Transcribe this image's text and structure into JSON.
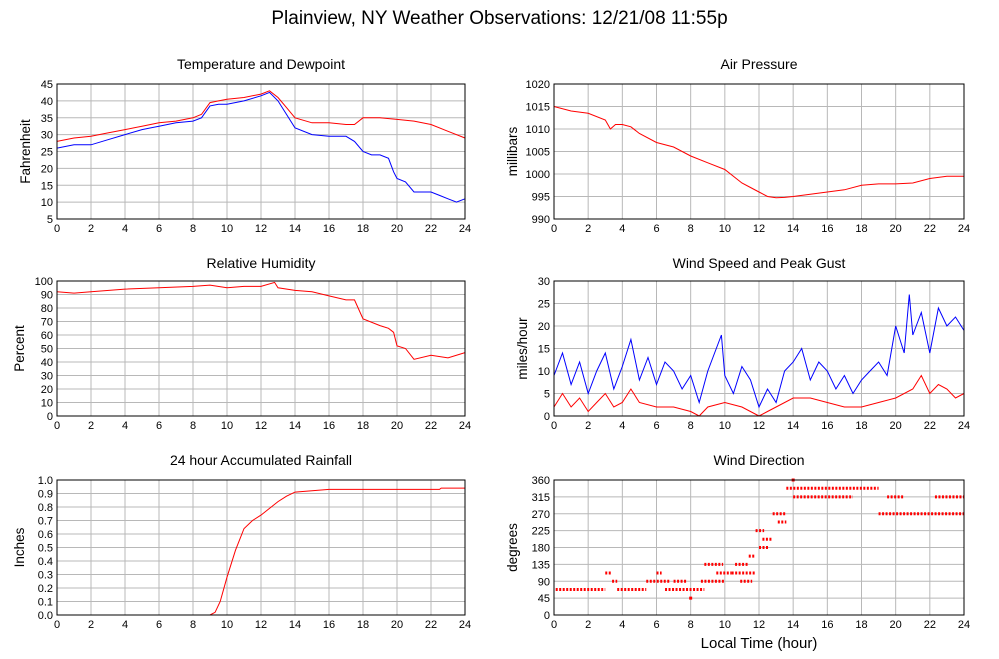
{
  "title": "Plainview, NY Weather Observations: 12/21/08 11:55p",
  "x_axis_label": "Local Time (hour)",
  "colors": {
    "red": "#ff0000",
    "blue": "#0000ff",
    "grid": "#b8b8b8"
  },
  "chart_data": [
    {
      "id": "temp",
      "type": "line",
      "title": "Temperature and Dewpoint",
      "ylabel": "Fahrenheit",
      "xlim": [
        0,
        24
      ],
      "ylim": [
        5,
        45
      ],
      "xticks": [
        0,
        2,
        4,
        6,
        8,
        10,
        12,
        14,
        16,
        18,
        20,
        22,
        24
      ],
      "yticks": [
        5,
        10,
        15,
        20,
        25,
        30,
        35,
        40,
        45
      ],
      "grid": true,
      "series": [
        {
          "color": "#ff0000",
          "x": [
            0,
            1,
            2,
            3,
            4,
            5,
            6,
            7,
            8,
            8.5,
            9,
            9.5,
            10,
            11,
            12,
            12.5,
            13,
            13.5,
            14,
            15,
            16,
            17,
            17.5,
            18,
            19,
            20,
            21,
            22,
            23,
            24
          ],
          "y": [
            28,
            29,
            29.5,
            30.5,
            31.5,
            32.5,
            33.5,
            34,
            35,
            36,
            39.5,
            40,
            40.5,
            41,
            42,
            43,
            41,
            38,
            35,
            33.5,
            33.5,
            33,
            33,
            35,
            35,
            34.5,
            34,
            33,
            31,
            29
          ]
        },
        {
          "color": "#0000ff",
          "x": [
            0,
            1,
            2,
            3,
            4,
            5,
            6,
            7,
            8,
            8.5,
            9,
            9.5,
            10,
            11,
            12,
            12.5,
            13,
            13.5,
            14,
            15,
            16,
            17,
            17.5,
            18,
            18.5,
            19,
            19.5,
            19.8,
            20,
            20.5,
            21,
            21.5,
            22,
            22.5,
            23,
            23.5,
            24
          ],
          "y": [
            26,
            27,
            27,
            28.5,
            30,
            31.5,
            32.5,
            33.5,
            34,
            35,
            38.5,
            39,
            39,
            40,
            41.5,
            42.5,
            40,
            36,
            32,
            30,
            29.5,
            29.5,
            28,
            25,
            24,
            24,
            23,
            19,
            17,
            16,
            13,
            13,
            13,
            12,
            11,
            10,
            11
          ]
        }
      ]
    },
    {
      "id": "pressure",
      "type": "line",
      "title": "Air Pressure",
      "ylabel": "millibars",
      "xlim": [
        0,
        24
      ],
      "ylim": [
        990,
        1020
      ],
      "xticks": [
        0,
        2,
        4,
        6,
        8,
        10,
        12,
        14,
        16,
        18,
        20,
        22,
        24
      ],
      "yticks": [
        990,
        995,
        1000,
        1005,
        1010,
        1015,
        1020
      ],
      "grid": true,
      "series": [
        {
          "color": "#ff0000",
          "x": [
            0,
            1,
            2,
            3,
            3.3,
            3.6,
            4,
            4.5,
            5,
            6,
            7,
            8,
            9,
            10,
            11,
            11.5,
            12,
            12.5,
            13,
            13.5,
            14,
            15,
            16,
            17,
            18,
            19,
            20,
            21,
            22,
            23,
            24
          ],
          "y": [
            1015,
            1014,
            1013.5,
            1012,
            1010,
            1011,
            1011,
            1010.5,
            1009,
            1007,
            1006,
            1004,
            1002.5,
            1001,
            998,
            997,
            996,
            995,
            994.7,
            994.8,
            995,
            995.5,
            996,
            996.5,
            997.5,
            997.8,
            997.8,
            998,
            999,
            999.5,
            999.5
          ]
        }
      ]
    },
    {
      "id": "humidity",
      "type": "line",
      "title": "Relative Humidity",
      "ylabel": "Percent",
      "xlim": [
        0,
        24
      ],
      "ylim": [
        0,
        100
      ],
      "xticks": [
        0,
        2,
        4,
        6,
        8,
        10,
        12,
        14,
        16,
        18,
        20,
        22,
        24
      ],
      "yticks": [
        0,
        10,
        20,
        30,
        40,
        50,
        60,
        70,
        80,
        90,
        100
      ],
      "grid": true,
      "series": [
        {
          "color": "#ff0000",
          "x": [
            0,
            1,
            2,
            4,
            6,
            8,
            9,
            10,
            11,
            12,
            12.8,
            13,
            14,
            15,
            16,
            17,
            17.5,
            18,
            19,
            19.5,
            19.8,
            20,
            20.5,
            21,
            22,
            23,
            24
          ],
          "y": [
            92,
            91,
            92,
            94,
            95,
            96,
            97,
            95,
            96,
            96,
            99,
            95,
            93,
            92,
            89,
            86,
            86,
            72,
            67,
            65,
            62,
            52,
            50,
            42,
            45,
            43,
            47
          ]
        }
      ]
    },
    {
      "id": "wind",
      "type": "line",
      "title": "Wind Speed and Peak Gust",
      "ylabel": "miles/hour",
      "xlim": [
        0,
        24
      ],
      "ylim": [
        0,
        30
      ],
      "xticks": [
        0,
        2,
        4,
        6,
        8,
        10,
        12,
        14,
        16,
        18,
        20,
        22,
        24
      ],
      "yticks": [
        0,
        5,
        10,
        15,
        20,
        25,
        30
      ],
      "grid": true,
      "series": [
        {
          "color": "#0000ff",
          "x": [
            0,
            0.5,
            1,
            1.5,
            2,
            2.5,
            3,
            3.5,
            4,
            4.5,
            5,
            5.5,
            6,
            6.5,
            7,
            7.5,
            8,
            8.5,
            9,
            9.5,
            9.8,
            10,
            10.5,
            11,
            11.5,
            12,
            12.5,
            13,
            13.5,
            14,
            14.5,
            15,
            15.5,
            16,
            16.5,
            17,
            17.5,
            18,
            18.5,
            19,
            19.5,
            20,
            20.5,
            20.8,
            21,
            21.5,
            22,
            22.5,
            23,
            23.5,
            24
          ],
          "y": [
            9,
            14,
            7,
            12,
            5,
            10,
            14,
            6,
            11,
            17,
            8,
            13,
            7,
            12,
            10,
            6,
            9,
            3,
            10,
            15,
            18,
            9,
            5,
            11,
            8,
            2,
            6,
            3,
            10,
            12,
            15,
            8,
            12,
            10,
            6,
            9,
            5,
            8,
            10,
            12,
            9,
            20,
            14,
            27,
            18,
            23,
            14,
            24,
            20,
            22,
            19
          ]
        },
        {
          "color": "#ff0000",
          "x": [
            0,
            0.5,
            1,
            1.5,
            2,
            2.5,
            3,
            3.5,
            4,
            4.5,
            5,
            6,
            7,
            8,
            8.5,
            9,
            10,
            11,
            12,
            12.5,
            13,
            14,
            15,
            16,
            17,
            18,
            19,
            20,
            21,
            21.5,
            22,
            22.5,
            23,
            23.5,
            24
          ],
          "y": [
            2,
            5,
            2,
            4,
            1,
            3,
            5,
            2,
            3,
            6,
            3,
            2,
            2,
            1,
            0,
            2,
            3,
            2,
            0,
            1,
            2,
            4,
            4,
            3,
            2,
            2,
            3,
            4,
            6,
            9,
            5,
            7,
            6,
            4,
            5
          ]
        }
      ]
    },
    {
      "id": "rain",
      "type": "line",
      "title": "24 hour Accumulated Rainfall",
      "ylabel": "Inches",
      "xlim": [
        0,
        24
      ],
      "ylim": [
        0,
        1.0
      ],
      "xticks": [
        0,
        2,
        4,
        6,
        8,
        10,
        12,
        14,
        16,
        18,
        20,
        22,
        24
      ],
      "yticks": [
        0,
        0.1,
        0.2,
        0.3,
        0.4,
        0.5,
        0.6,
        0.7,
        0.8,
        0.9,
        1.0
      ],
      "ytick_labels": [
        "0.0",
        "0.1",
        "0.2",
        "0.3",
        "0.4",
        "0.5",
        "0.6",
        "0.7",
        "0.8",
        "0.9",
        "1.0"
      ],
      "grid": true,
      "series": [
        {
          "color": "#ff0000",
          "x": [
            0,
            9,
            9.3,
            9.6,
            10,
            10.5,
            11,
            11.5,
            12,
            12.5,
            13,
            13.5,
            14,
            15,
            16,
            17,
            22.5,
            22.6,
            24
          ],
          "y": [
            0,
            0,
            0.02,
            0.1,
            0.28,
            0.48,
            0.64,
            0.7,
            0.74,
            0.79,
            0.84,
            0.88,
            0.91,
            0.92,
            0.93,
            0.93,
            0.93,
            0.94,
            0.94
          ]
        }
      ]
    },
    {
      "id": "direction",
      "type": "scatter",
      "title": "Wind Direction",
      "ylabel": "degrees",
      "xlim": [
        0,
        24
      ],
      "ylim": [
        0,
        360
      ],
      "xticks": [
        0,
        2,
        4,
        6,
        8,
        10,
        12,
        14,
        16,
        18,
        20,
        22,
        24
      ],
      "yticks": [
        0,
        45,
        90,
        135,
        180,
        225,
        270,
        315,
        360
      ],
      "grid": true,
      "segments": [
        {
          "x0": 0.1,
          "x1": 3.0,
          "y": 68
        },
        {
          "x0": 3.0,
          "x1": 3.4,
          "y": 112
        },
        {
          "x0": 3.4,
          "x1": 3.7,
          "y": 90
        },
        {
          "x0": 3.7,
          "x1": 5.4,
          "y": 68
        },
        {
          "x0": 5.4,
          "x1": 6.8,
          "y": 90
        },
        {
          "x0": 6.0,
          "x1": 6.3,
          "y": 112
        },
        {
          "x0": 6.5,
          "x1": 8.8,
          "y": 68
        },
        {
          "x0": 7.0,
          "x1": 7.8,
          "y": 90
        },
        {
          "x0": 8.6,
          "x1": 10.0,
          "y": 90
        },
        {
          "x0": 8.8,
          "x1": 9.9,
          "y": 135
        },
        {
          "x0": 9.5,
          "x1": 10.4,
          "y": 112
        },
        {
          "x0": 10.4,
          "x1": 11.8,
          "y": 112
        },
        {
          "x0": 10.6,
          "x1": 11.4,
          "y": 135
        },
        {
          "x0": 10.9,
          "x1": 11.6,
          "y": 90
        },
        {
          "x0": 11.4,
          "x1": 11.8,
          "y": 157
        },
        {
          "x0": 11.8,
          "x1": 12.3,
          "y": 225
        },
        {
          "x0": 12.0,
          "x1": 12.6,
          "y": 180
        },
        {
          "x0": 12.2,
          "x1": 12.8,
          "y": 202
        },
        {
          "x0": 12.8,
          "x1": 13.6,
          "y": 270
        },
        {
          "x0": 13.1,
          "x1": 13.6,
          "y": 248
        },
        {
          "x0": 13.6,
          "x1": 19.0,
          "y": 338
        },
        {
          "x0": 14.0,
          "x1": 17.5,
          "y": 315
        },
        {
          "x0": 19.0,
          "x1": 24.0,
          "y": 270
        },
        {
          "x0": 19.5,
          "x1": 20.5,
          "y": 315
        },
        {
          "x0": 22.3,
          "x1": 24.0,
          "y": 315
        }
      ],
      "outliers": [
        {
          "x": 8.0,
          "y": 45
        },
        {
          "x": 14.0,
          "y": 360
        }
      ]
    }
  ]
}
